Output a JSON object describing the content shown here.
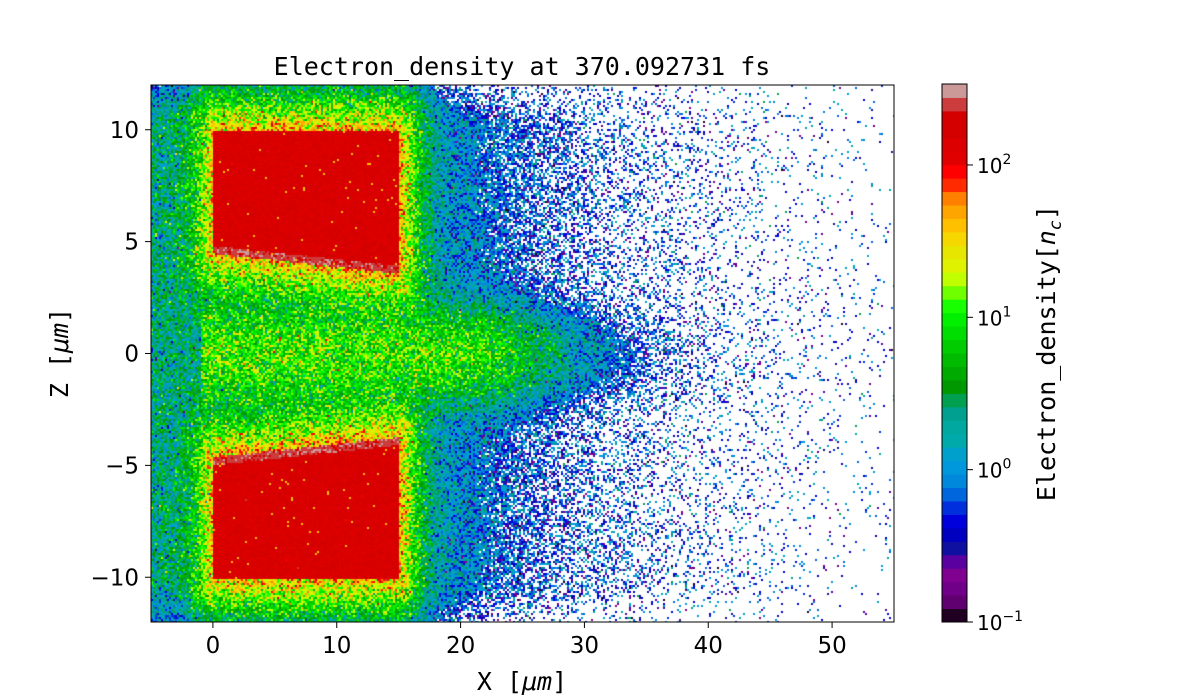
{
  "chart_data": {
    "type": "heatmap",
    "title": "Electron_density at 370.092731 fs",
    "xlabel": "X",
    "xlabel_unit": "μm",
    "ylabel": "Z",
    "ylabel_unit": "μm",
    "xlim": [
      -5,
      55
    ],
    "ylim": [
      -12,
      12
    ],
    "xticks": [
      0,
      10,
      20,
      30,
      40,
      50
    ],
    "xtick_labels": [
      "0",
      "10",
      "20",
      "30",
      "40",
      "50"
    ],
    "yticks": [
      10,
      5,
      0,
      -5,
      -10
    ],
    "ytick_labels": [
      "10",
      "5",
      "0",
      "−5",
      "−10"
    ],
    "colorbar": {
      "label": "Electron_density",
      "label_unit": "n",
      "label_unit_sub": "c",
      "scale": "log",
      "range": [
        0.1,
        340
      ],
      "ticks": [
        0.1,
        1,
        10,
        100
      ],
      "tick_bases": [
        "10",
        "10",
        "10",
        "10"
      ],
      "tick_exponents": [
        "−1",
        "0",
        "1",
        "2"
      ],
      "colors": [
        "#200020",
        "#600070",
        "#700088",
        "#800090",
        "#5a00a0",
        "#1010a0",
        "#0000c0",
        "#0000dd",
        "#0030dd",
        "#0066dd",
        "#0088dd",
        "#0098dd",
        "#00a0cc",
        "#00aaaa",
        "#00a8a0",
        "#00a090",
        "#00a050",
        "#009800",
        "#00aa00",
        "#00bb00",
        "#00cc00",
        "#00dd00",
        "#00f000",
        "#18ff00",
        "#70ff00",
        "#c0ff00",
        "#dff200",
        "#e6e600",
        "#f6d800",
        "#ffc000",
        "#ffa500",
        "#ff7f00",
        "#ff2a00",
        "#ff0000",
        "#e00000",
        "#dd0000",
        "#d40000",
        "#d40000",
        "#cc3c3c",
        "#cc9999"
      ]
    },
    "regions": [
      {
        "name": "upper target",
        "x": [
          0,
          15
        ],
        "z": [
          4,
          10
        ],
        "density": 150
      },
      {
        "name": "lower target",
        "x": [
          0,
          15
        ],
        "z": [
          -10,
          -4
        ],
        "density": 150
      },
      {
        "name": "central channel",
        "x": [
          0,
          22
        ],
        "z": [
          -2,
          2
        ],
        "density": 8
      },
      {
        "name": "expanding plasma",
        "x": [
          -5,
          55
        ],
        "z": [
          -12,
          12
        ],
        "density": 1
      }
    ]
  }
}
